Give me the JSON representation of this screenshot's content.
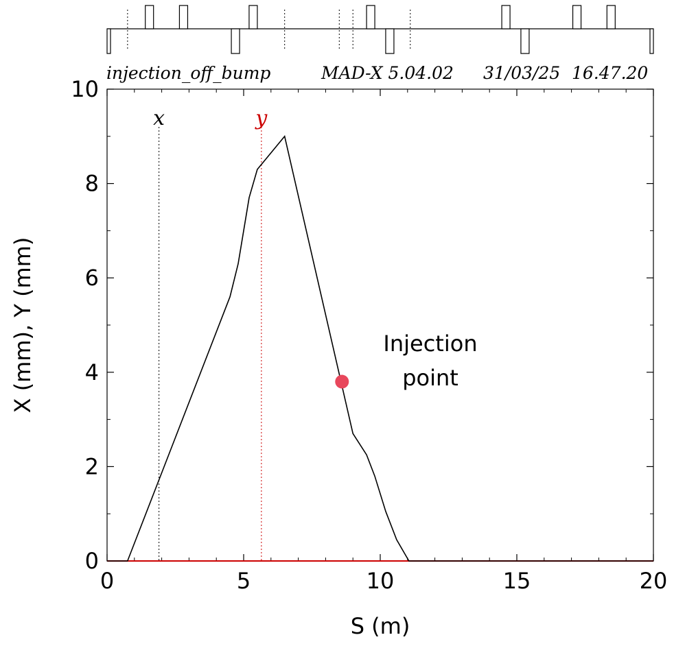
{
  "chart_data": {
    "type": "line",
    "header": {
      "title": "injection_off_bump",
      "program": "MAD-X 5.04.02",
      "date": "31/03/25",
      "time": "16.47.20"
    },
    "xlabel": "S (m)",
    "ylabel": "X (mm), Y (mm)",
    "xlim": [
      0,
      20
    ],
    "ylim": [
      0,
      10
    ],
    "xticks": [
      0,
      5,
      10,
      15,
      20
    ],
    "yticks": [
      0,
      2,
      4,
      6,
      8,
      10
    ],
    "series": [
      {
        "name": "x",
        "color": "#000000",
        "label_at_s": 1.9,
        "x": [
          0,
          0.75,
          4.5,
          4.8,
          5.2,
          5.5,
          6.5,
          9.0,
          9.5,
          9.8,
          10.2,
          10.6,
          11.05,
          20
        ],
        "y": [
          0,
          0,
          5.6,
          6.3,
          7.7,
          8.3,
          9.0,
          2.7,
          2.25,
          1.8,
          1.05,
          0.45,
          0,
          0
        ]
      },
      {
        "name": "y",
        "color": "#cc0000",
        "label_at_s": 5.65,
        "x": [
          0,
          20
        ],
        "y": [
          0,
          0
        ]
      }
    ],
    "annotations": [
      {
        "text_lines": [
          "Injection",
          "point"
        ],
        "point": {
          "s": 8.6,
          "value": 3.8
        },
        "marker_color": "#e8475c"
      }
    ],
    "lattice": {
      "s_range": [
        0,
        20
      ],
      "elements": [
        {
          "kind": "marker",
          "s": 0.75
        },
        {
          "kind": "focusing",
          "s": 1.55
        },
        {
          "kind": "focusing",
          "s": 2.8
        },
        {
          "kind": "defocusing",
          "s": 4.7
        },
        {
          "kind": "focusing",
          "s": 5.35
        },
        {
          "kind": "marker",
          "s": 6.5
        },
        {
          "kind": "marker",
          "s": 8.5
        },
        {
          "kind": "marker",
          "s": 9.0
        },
        {
          "kind": "focusing",
          "s": 9.65
        },
        {
          "kind": "defocusing",
          "s": 10.35
        },
        {
          "kind": "marker",
          "s": 11.1
        },
        {
          "kind": "focusing",
          "s": 14.6
        },
        {
          "kind": "defocusing",
          "s": 15.3
        },
        {
          "kind": "focusing",
          "s": 17.2
        },
        {
          "kind": "focusing",
          "s": 18.45
        },
        {
          "kind": "defocusing_edge",
          "s": 0.0
        },
        {
          "kind": "defocusing_edge",
          "s": 20.0
        }
      ]
    }
  }
}
